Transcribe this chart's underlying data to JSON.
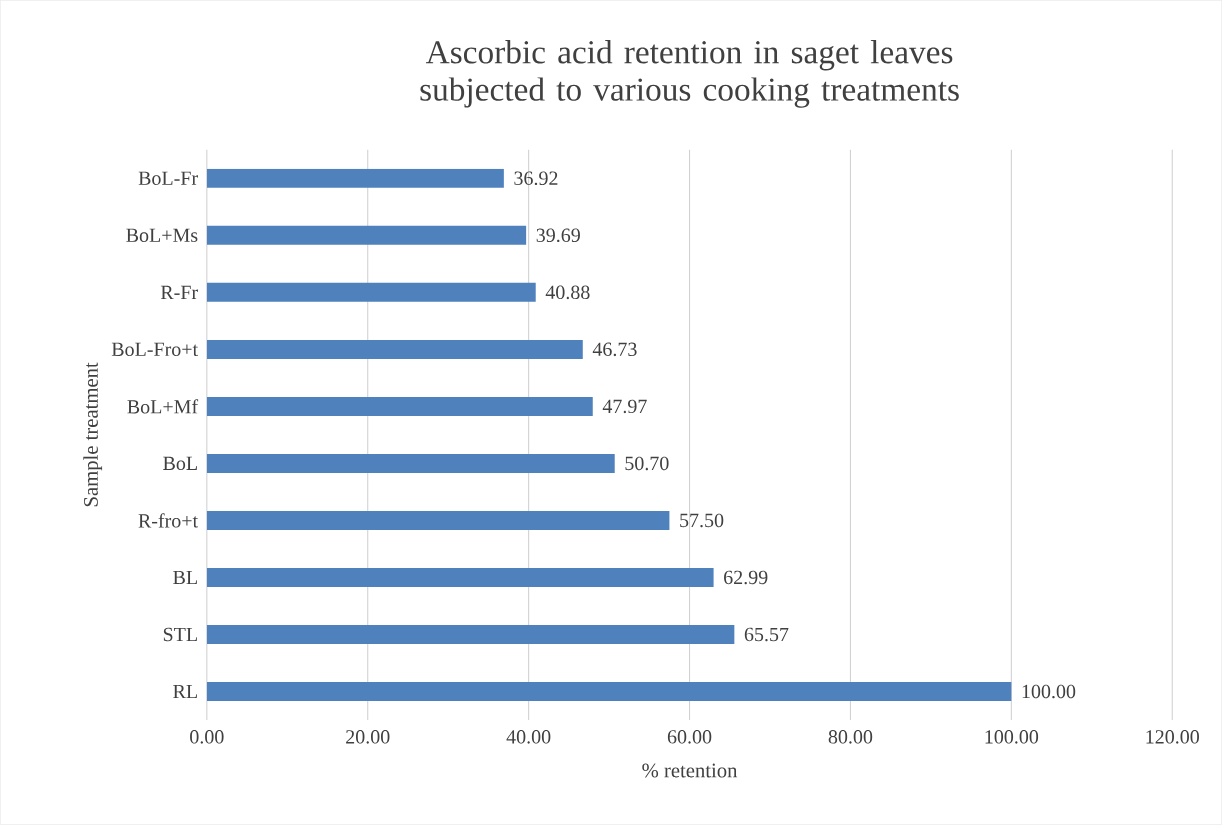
{
  "chart_data": {
    "type": "bar",
    "orientation": "horizontal",
    "title": "Ascorbic acid retention in saget leaves subjected to various cooking treatments",
    "xlabel": "% retention",
    "ylabel": "Sample treatment",
    "categories": [
      "BoL-Fr",
      "BoL+Ms",
      "R-Fr",
      "BoL-Fro+t",
      "BoL+Mf",
      "BoL",
      "R-fro+t",
      "BL",
      "STL",
      "RL"
    ],
    "values": [
      36.92,
      39.69,
      40.88,
      46.73,
      47.97,
      50.7,
      57.5,
      62.99,
      65.57,
      100.0
    ],
    "value_labels": [
      "36.92",
      "39.69",
      "40.88",
      "46.73",
      "47.97",
      "50.70",
      "57.50",
      "62.99",
      "65.57",
      "100.00"
    ],
    "color": "#4f81bd",
    "xlim": [
      0,
      120
    ],
    "xticks": [
      {
        "value": 0,
        "label": "0.00"
      },
      {
        "value": 20,
        "label": "20.00"
      },
      {
        "value": 40,
        "label": "40.00"
      },
      {
        "value": 60,
        "label": "60.00"
      },
      {
        "value": 80,
        "label": "80.00"
      },
      {
        "value": 100,
        "label": "100.00"
      },
      {
        "value": 120,
        "label": "120.00"
      }
    ],
    "grid": "x"
  }
}
